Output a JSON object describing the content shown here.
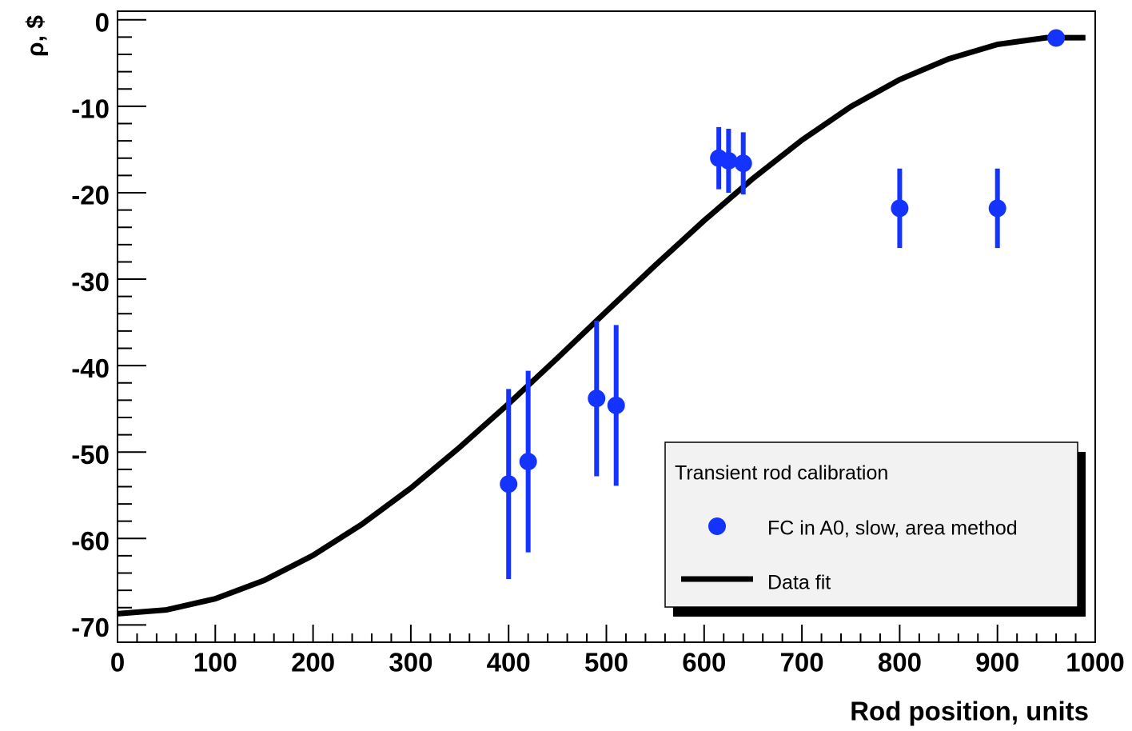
{
  "chart_data": {
    "type": "scatter",
    "x_label": "Rod position, units",
    "y_label": "ρ, $",
    "legend_title": "Transient rod calibration",
    "legend_position": "bottom-right",
    "xlim": [
      0,
      1000
    ],
    "ylim": [
      -72,
      1
    ],
    "xticks": [
      0,
      100,
      200,
      300,
      400,
      500,
      600,
      700,
      800,
      900,
      1000
    ],
    "yticks": [
      0,
      -10,
      -20,
      -30,
      -40,
      -50,
      -60,
      -70
    ],
    "xminorticks": [
      20,
      40,
      60,
      80,
      120,
      140,
      160,
      180,
      220,
      240,
      260,
      280,
      320,
      340,
      360,
      380,
      420,
      440,
      460,
      480,
      520,
      540,
      560,
      580,
      620,
      640,
      660,
      680,
      720,
      740,
      760,
      780,
      820,
      840,
      860,
      880,
      920,
      940,
      960,
      980
    ],
    "yminorticks": [
      -68,
      -66,
      -64,
      -62,
      -58,
      -56,
      -54,
      -52,
      -48,
      -46,
      -44,
      -42,
      -38,
      -36,
      -34,
      -32,
      -28,
      -26,
      -24,
      -22,
      -18,
      -16,
      -14,
      -12,
      -8,
      -6,
      -4,
      -2
    ],
    "series": [
      {
        "name": "Data fit",
        "type": "line",
        "color": "#000000",
        "x": [
          0,
          50,
          100,
          150,
          200,
          250,
          300,
          350,
          400,
          450,
          500,
          550,
          600,
          650,
          700,
          750,
          800,
          850,
          900,
          950,
          990
        ],
        "values": [
          -68.7,
          -68.26,
          -66.97,
          -64.84,
          -61.95,
          -58.35,
          -54.17,
          -49.45,
          -44.41,
          -39.12,
          -33.73,
          -28.39,
          -23.22,
          -18.35,
          -13.91,
          -10.04,
          -6.91,
          -4.52,
          -2.84,
          -2.07,
          -2.07
        ]
      },
      {
        "name": "FC in A0, slow, area method",
        "type": "scatter",
        "color": "#1433ff",
        "x": [
          400,
          420,
          490,
          510,
          615,
          625,
          640,
          800,
          900,
          960
        ],
        "values": [
          -53.7,
          -51.1,
          -43.8,
          -44.6,
          -16.0,
          -16.3,
          -16.6,
          -21.8,
          -21.8,
          -2.1
        ],
        "errors": [
          11,
          10.5,
          9,
          9.3,
          3.6,
          3.7,
          3.6,
          4.6,
          4.6,
          0
        ]
      }
    ]
  }
}
